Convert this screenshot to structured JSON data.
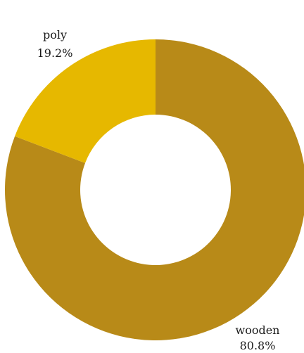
{
  "chart_data": {
    "type": "pie",
    "donut": true,
    "slices": [
      {
        "label": "wooden",
        "value": 80.8,
        "percent_label": "80.8%",
        "color": "#B88A18"
      },
      {
        "label": "poly",
        "value": 19.2,
        "percent_label": "19.2%",
        "color": "#E6B800"
      }
    ],
    "start": "12 o'clock",
    "direction": "clockwise"
  }
}
